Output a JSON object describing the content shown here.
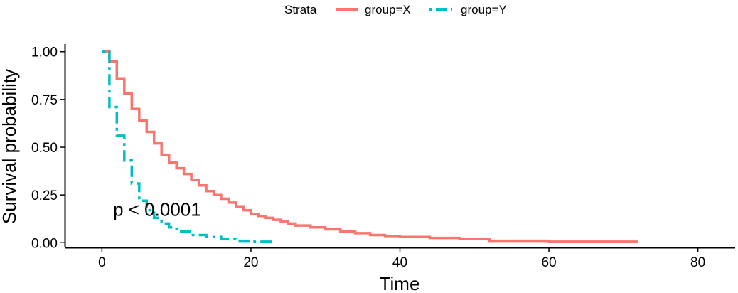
{
  "chart_data": {
    "type": "line",
    "subtype": "step",
    "xlabel": "Time",
    "ylabel": "Survival probability",
    "xlim": [
      -5,
      85
    ],
    "ylim": [
      -0.025,
      1.04
    ],
    "x_ticks": [
      0,
      20,
      40,
      60,
      80
    ],
    "x_tick_labels": [
      "0",
      "20",
      "40",
      "60",
      "80"
    ],
    "y_ticks": [
      0,
      0.25,
      0.5,
      0.75,
      1
    ],
    "y_tick_labels": [
      "0.00",
      "0.25",
      "0.50",
      "0.75",
      "1.00"
    ],
    "grid": false,
    "legend": {
      "title": "Strata",
      "position": "top"
    },
    "annotation": {
      "text": "p < 0.0001",
      "x": 1.5,
      "y": 0.175
    },
    "series": [
      {
        "name": "group=X",
        "color": "#F8766D",
        "line_style": "solid",
        "x": [
          0,
          1,
          2,
          3,
          4,
          5,
          6,
          7,
          8,
          9,
          10,
          11,
          12,
          13,
          14,
          15,
          16,
          17,
          18,
          19,
          20,
          21,
          22,
          23,
          24,
          25,
          26,
          28,
          30,
          32,
          34,
          36,
          38,
          40,
          44,
          48,
          52,
          60,
          72
        ],
        "y": [
          1.0,
          0.95,
          0.86,
          0.78,
          0.7,
          0.64,
          0.58,
          0.52,
          0.46,
          0.42,
          0.39,
          0.36,
          0.33,
          0.3,
          0.27,
          0.25,
          0.23,
          0.21,
          0.19,
          0.17,
          0.15,
          0.14,
          0.13,
          0.12,
          0.11,
          0.1,
          0.09,
          0.08,
          0.07,
          0.06,
          0.05,
          0.04,
          0.035,
          0.03,
          0.025,
          0.02,
          0.01,
          0.005,
          0.005
        ]
      },
      {
        "name": "group=Y",
        "color": "#00BFC4",
        "line_style": "dashdot",
        "x": [
          0,
          1,
          2,
          3,
          4,
          5,
          6,
          7,
          8,
          9,
          10,
          12,
          14,
          16,
          18,
          20,
          23
        ],
        "y": [
          1.0,
          0.71,
          0.56,
          0.43,
          0.31,
          0.22,
          0.17,
          0.13,
          0.1,
          0.08,
          0.06,
          0.04,
          0.03,
          0.02,
          0.01,
          0.005,
          0.005
        ]
      }
    ]
  }
}
